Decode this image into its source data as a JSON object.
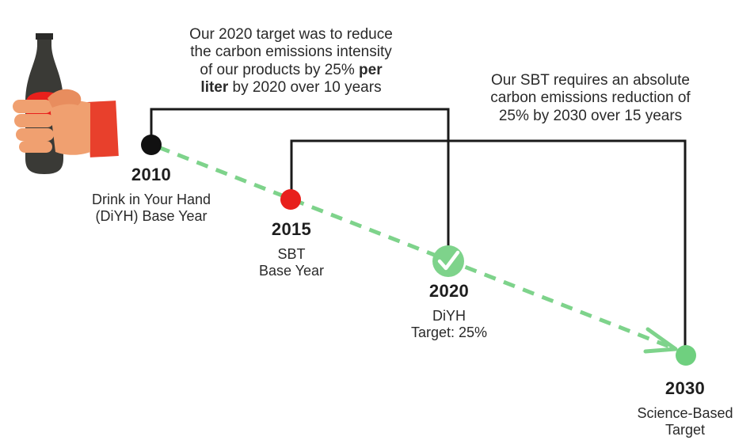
{
  "callout_2020": {
    "line1": "Our 2020 target was to reduce",
    "line2": "the carbon emissions intensity",
    "line3_pre": "of our products by 25% ",
    "line3_bold": "per",
    "line4_bold": "liter",
    "line4_post": " by 2020 over 10 years"
  },
  "callout_sbt": {
    "line1": "Our SBT requires an absolute",
    "line2": "carbon emissions reduction of",
    "line3": "25% by 2030 over 15 years"
  },
  "milestones": [
    {
      "year": "2010",
      "sub1": "Drink in Your Hand",
      "sub2": "(DiYH) Base Year"
    },
    {
      "year": "2015",
      "sub1": "SBT",
      "sub2": "Base Year"
    },
    {
      "year": "2020",
      "sub1": "DiYH",
      "sub2": "Target: 25%"
    },
    {
      "year": "2030",
      "sub1": "Science-Based",
      "sub2": "Target"
    }
  ],
  "colors": {
    "dot_2010": "#111111",
    "dot_2015": "#e8201c",
    "dot_2020": "#7ed38b",
    "dot_2030": "#6fd07f",
    "trend_line": "#7ed38b",
    "bracket": "#1a1a1a",
    "bottle": "#3a3a36",
    "bottle_label": "#e8201c",
    "hand": "#f0a070",
    "sleeve": "#e8402c"
  },
  "icons": [
    "bottle-in-hand-icon",
    "checkmark-icon",
    "arrow-head-icon"
  ]
}
